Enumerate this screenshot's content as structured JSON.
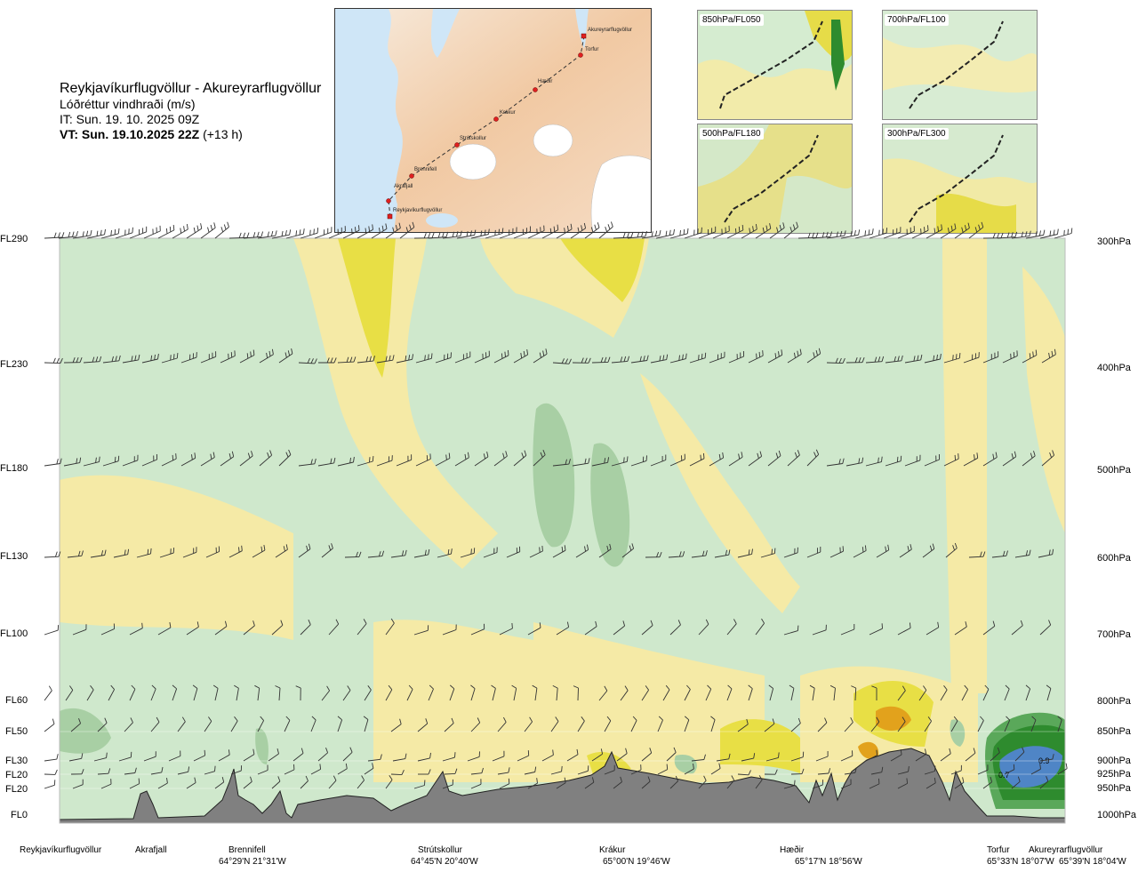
{
  "header": {
    "route_title": "Reykjavíkurflugvöllur - Akureyrarflugvöllur",
    "parameter": "Lóðréttur vindhraði (m/s)",
    "issue_time": "IT: Sun. 19. 10. 2025 09Z",
    "valid_time": "VT: Sun. 19.10.2025 22Z",
    "lead": "(+13 h)"
  },
  "map": {
    "points": [
      "Akureyrarflugvöllur",
      "Torfur",
      "Hæðir",
      "Krákur",
      "Strútskollur",
      "Brennifell",
      "Akrafjall",
      "Reykjavíkurflugvöllur"
    ]
  },
  "panels": [
    "850hPa/FL050",
    "700hPa/FL100",
    "500hPa/FL180",
    "300hPa/FL300"
  ],
  "colors": {
    "strong_down": "#2e8b2e",
    "down": "#a8cfa4",
    "weak_down": "#cfe8cc",
    "weak_up": "#f5eaa6",
    "up": "#e8df45",
    "strong_up": "#e2a21c",
    "terrain": "#808080"
  },
  "chart_data": {
    "type": "heatmap",
    "title": "Lóðréttur vindhraði (m/s)",
    "x_axis": {
      "locations": [
        "Reykjavíkurflugvöllur",
        "Akrafjall",
        "Brennifell",
        "Strútskollur",
        "Krákur",
        "Hæðir",
        "Torfur",
        "Akureyrarflugvöllur"
      ],
      "coordinates": [
        "64°29'N 21°31'W",
        "64°45'N 20°40'W",
        "65°00'N 19°46'W",
        "65°17'N 18°56'W",
        "65°33'N 18°07'W",
        "65°39'N 18°04'W"
      ]
    },
    "y_axis_left": [
      "FL290",
      "FL230",
      "FL180",
      "FL130",
      "FL100",
      "FL60",
      "FL50",
      "FL30",
      "FL20",
      "FL20",
      "FL0"
    ],
    "y_axis_right": [
      "300hPa",
      "400hPa",
      "500hPa",
      "600hPa",
      "700hPa",
      "800hPa",
      "850hPa",
      "900hPa",
      "925hPa",
      "950hPa",
      "1000hPa"
    ],
    "contour_labels": [
      "0.7",
      "0.9"
    ]
  }
}
